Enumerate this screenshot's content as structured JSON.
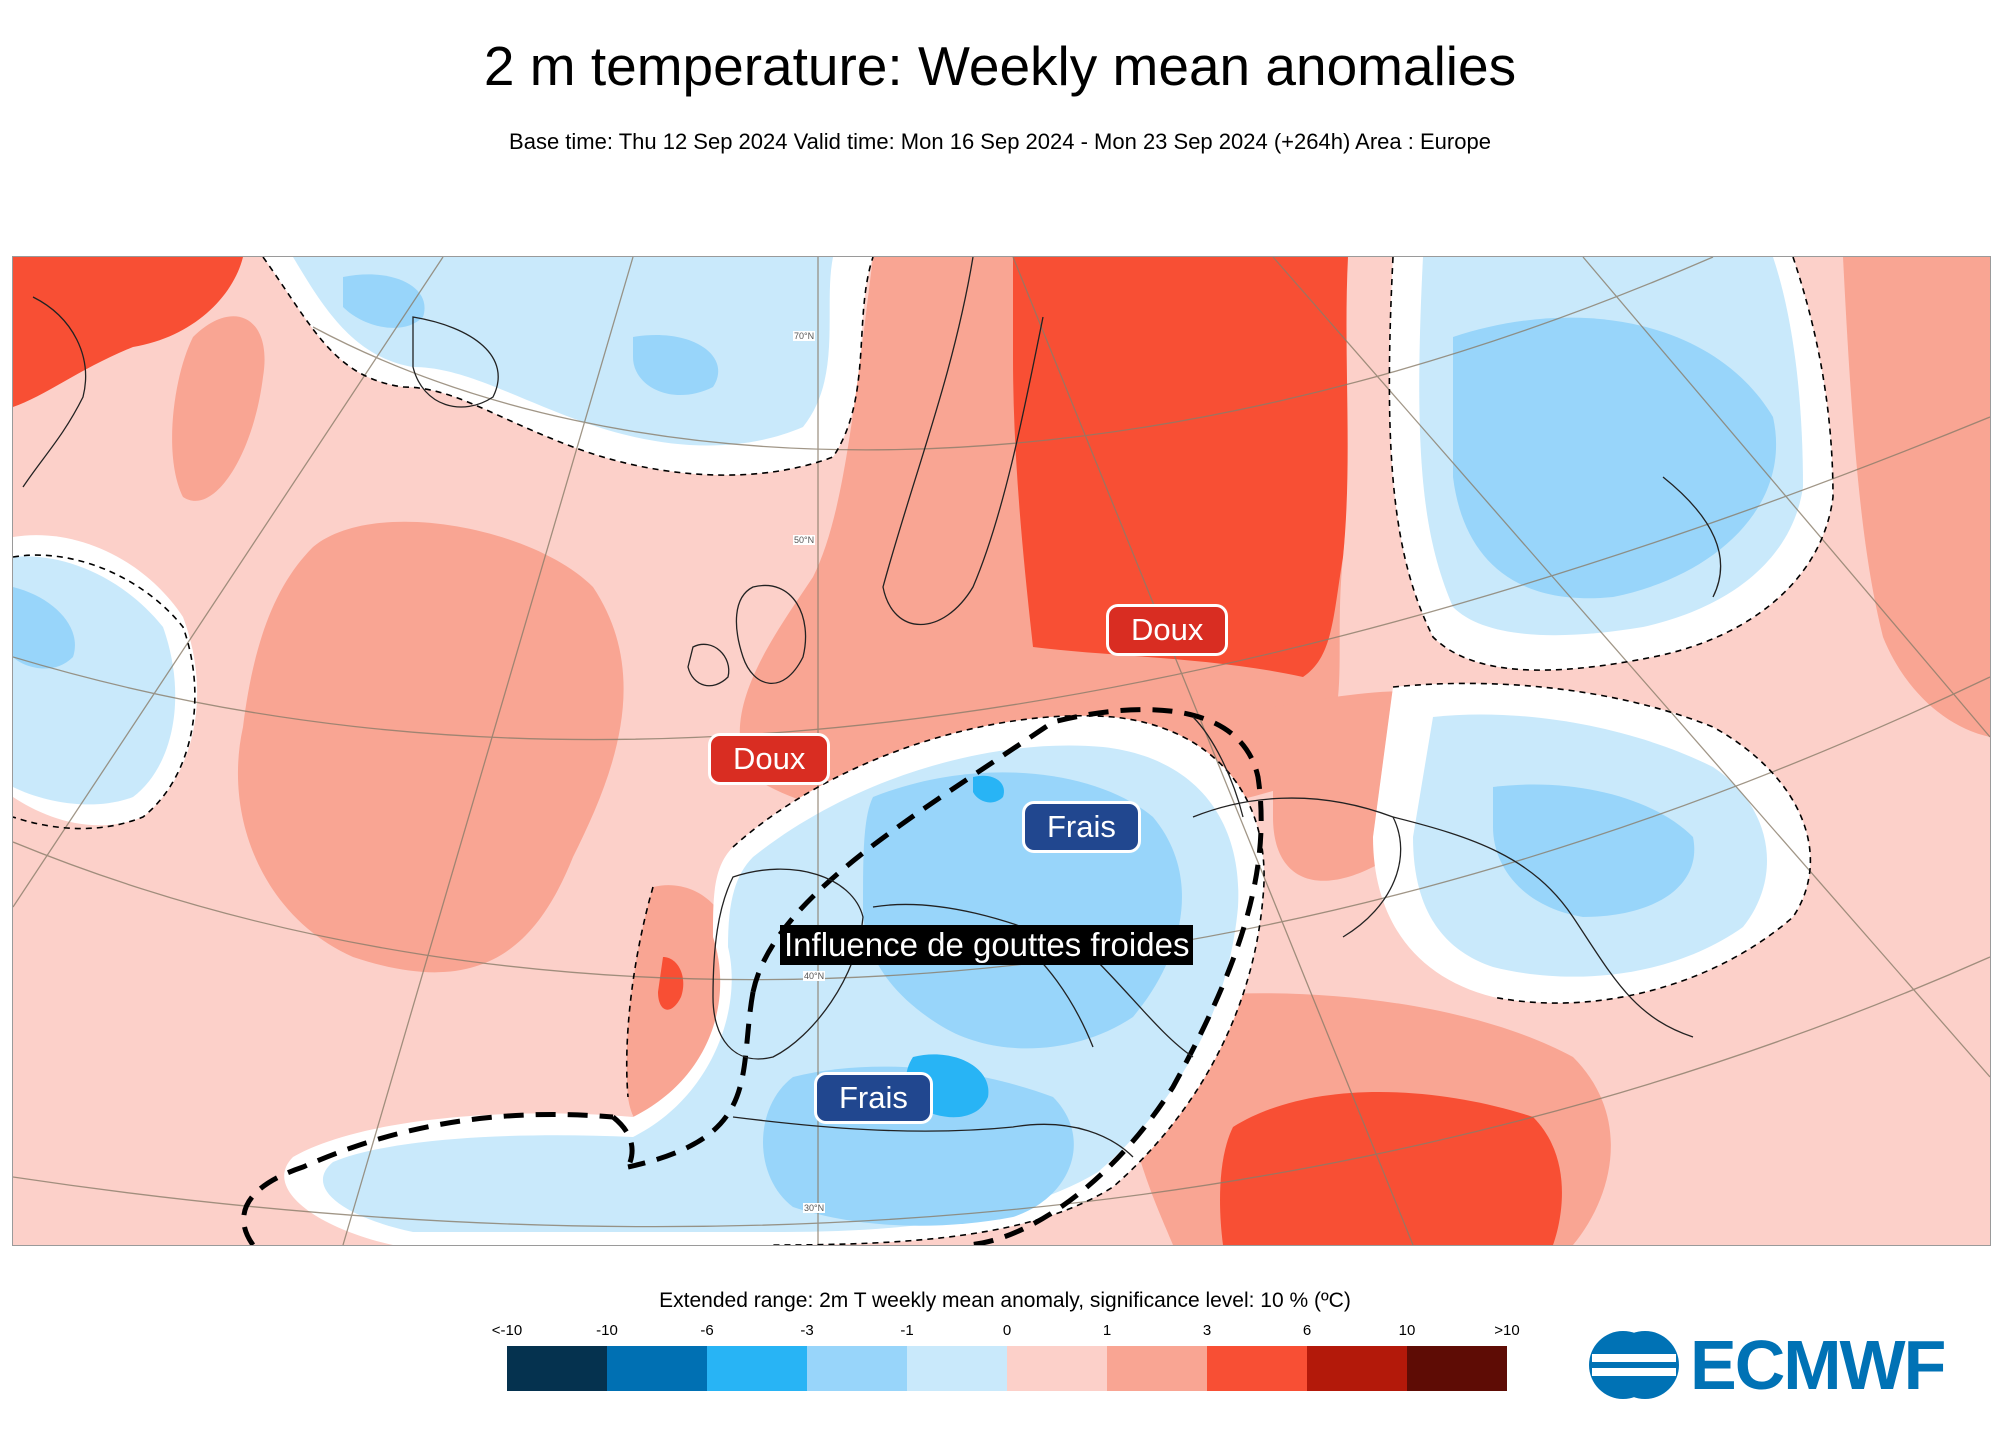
{
  "header": {
    "title": "2 m temperature: Weekly mean anomalies",
    "subtitle": "Base time: Thu 12 Sep 2024 Valid time: Mon 16 Sep 2024 - Mon 23 Sep 2024 (+264h) Area : Europe"
  },
  "map": {
    "labels": {
      "doux_east": "Doux",
      "doux_west": "Doux",
      "frais_central": "Frais",
      "frais_south": "Frais",
      "callout": "Influence de gouttes froides"
    },
    "latitude_labels": {
      "lat70": "70°N",
      "lat50": "50°N",
      "lat40": "40°N",
      "lat30": "30°N"
    }
  },
  "colorbar": {
    "title": "Extended range: 2m T weekly mean anomaly, significance level: 10 % (ºC)",
    "ticks": [
      "<-10",
      "-10",
      "-6",
      "-3",
      "-1",
      "0",
      "1",
      "3",
      "6",
      "10",
      ">10"
    ],
    "colors": [
      "#05324f",
      "#0070b3",
      "#28b4f5",
      "#98d5fa",
      "#c9e9fb",
      "#fcd0c9",
      "#f9a593",
      "#f84f34",
      "#b3190a",
      "#5e0c05"
    ]
  },
  "logo": {
    "text": "ECMWF",
    "brand_color": "#0072b5"
  },
  "icons": {
    "logo_mark": "ecmwf-logo-icon"
  }
}
